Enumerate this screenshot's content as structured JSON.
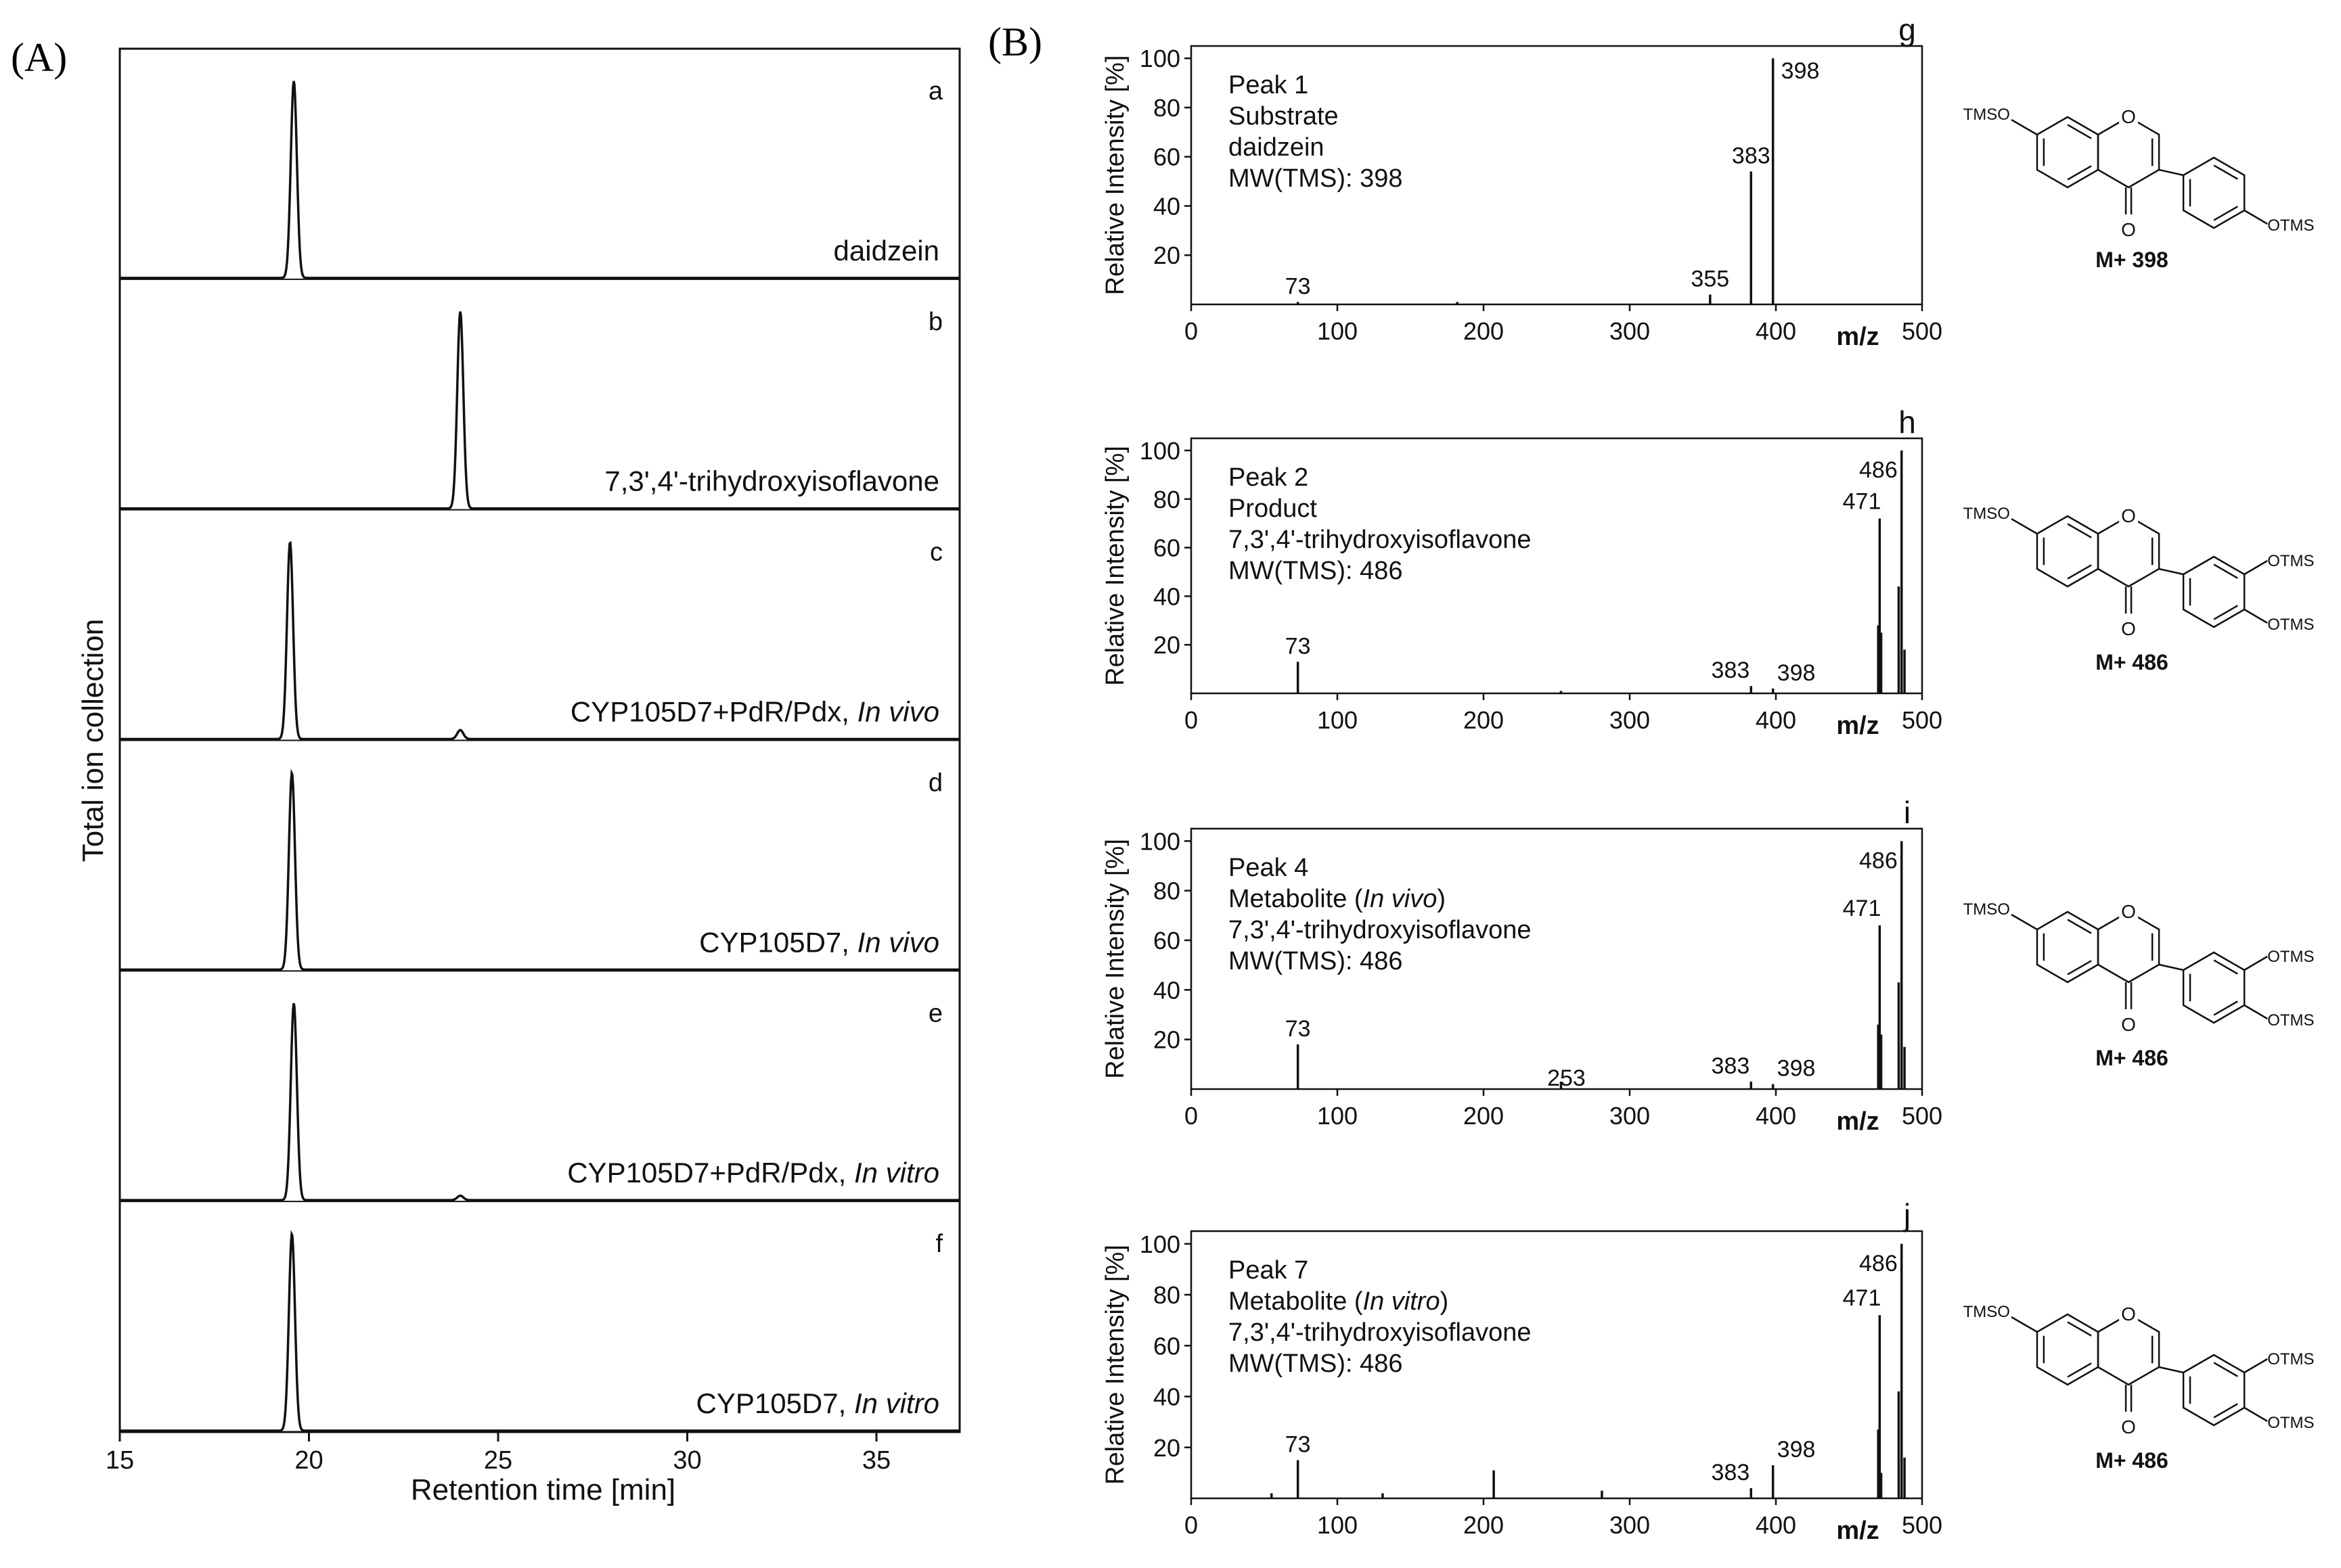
{
  "panel_labels": {
    "A": "(A)",
    "B": "(B)"
  },
  "colors": {
    "ink": "#111111",
    "background": "#ffffff"
  },
  "chart_data": [
    {
      "type": "line",
      "panel": "A",
      "xlabel": "Retention time [min]",
      "ylabel": "Total ion collection",
      "xlim": [
        15,
        37.2
      ],
      "xticks": [
        15,
        20,
        25,
        30,
        35
      ],
      "grid": false,
      "traces": [
        {
          "letter": "a",
          "label_parts": [
            {
              "text": "daidzein",
              "italic": false
            }
          ],
          "peaks": [
            {
              "x": 19.6,
              "h": 0.88
            }
          ]
        },
        {
          "letter": "b",
          "label_parts": [
            {
              "text": "7,3',4'-trihydroxyisoflavone",
              "italic": false
            }
          ],
          "peaks": [
            {
              "x": 24.0,
              "h": 0.88
            }
          ]
        },
        {
          "letter": "c",
          "label_parts": [
            {
              "text": "CYP105D7+PdR/Pdx, ",
              "italic": false
            },
            {
              "text": "In vivo",
              "italic": true
            }
          ],
          "peaks": [
            {
              "x": 19.5,
              "h": 0.88
            },
            {
              "x": 24.0,
              "h": 0.04
            }
          ]
        },
        {
          "letter": "d",
          "label_parts": [
            {
              "text": "CYP105D7, ",
              "italic": false
            },
            {
              "text": "In vivo",
              "italic": true
            }
          ],
          "peaks": [
            {
              "x": 19.55,
              "h": 0.88
            }
          ]
        },
        {
          "letter": "e",
          "label_parts": [
            {
              "text": "CYP105D7+PdR/Pdx, ",
              "italic": false
            },
            {
              "text": "In vitro",
              "italic": true
            }
          ],
          "peaks": [
            {
              "x": 19.6,
              "h": 0.88
            },
            {
              "x": 24.0,
              "h": 0.02
            }
          ]
        },
        {
          "letter": "f",
          "label_parts": [
            {
              "text": "CYP105D7, ",
              "italic": false
            },
            {
              "text": "In vitro",
              "italic": true
            }
          ],
          "peaks": [
            {
              "x": 19.55,
              "h": 0.88
            }
          ]
        }
      ]
    },
    {
      "type": "bar",
      "panel": "B",
      "letter": "g",
      "xlabel": "m/z",
      "ylabel": "Relative Intensity [%]",
      "xlim": [
        0,
        500
      ],
      "ylim": [
        0,
        105
      ],
      "xticks": [
        0,
        100,
        200,
        300,
        400,
        500
      ],
      "yticks": [
        20,
        40,
        60,
        80,
        100
      ],
      "info_lines": [
        [
          {
            "text": "Peak 1",
            "italic": false
          }
        ],
        [
          {
            "text": "Substrate",
            "italic": false
          }
        ],
        [
          {
            "text": "daidzein",
            "italic": false
          }
        ],
        [
          {
            "text": "MW(TMS): 398",
            "italic": false
          }
        ]
      ],
      "peaks": [
        {
          "mz": 73,
          "intensity": 1,
          "label": "73"
        },
        {
          "mz": 182,
          "intensity": 1
        },
        {
          "mz": 355,
          "intensity": 4,
          "label": "355"
        },
        {
          "mz": 383,
          "intensity": 54,
          "label": "383"
        },
        {
          "mz": 398,
          "intensity": 100,
          "label": "398"
        }
      ],
      "molecule": {
        "r7": "TMSO",
        "r3p": "",
        "r4p": "OTMS",
        "caption": "M+ 398"
      }
    },
    {
      "type": "bar",
      "panel": "B",
      "letter": "h",
      "xlabel": "m/z",
      "ylabel": "Relative Intensity [%]",
      "xlim": [
        0,
        500
      ],
      "ylim": [
        0,
        105
      ],
      "xticks": [
        0,
        100,
        200,
        300,
        400,
        500
      ],
      "yticks": [
        20,
        40,
        60,
        80,
        100
      ],
      "info_lines": [
        [
          {
            "text": "Peak 2",
            "italic": false
          }
        ],
        [
          {
            "text": "Product",
            "italic": false
          }
        ],
        [
          {
            "text": "7,3',4'-trihydroxyisoflavone",
            "italic": false
          }
        ],
        [
          {
            "text": "MW(TMS): 486",
            "italic": false
          }
        ]
      ],
      "peaks": [
        {
          "mz": 73,
          "intensity": 13,
          "label": "73"
        },
        {
          "mz": 253,
          "intensity": 1
        },
        {
          "mz": 383,
          "intensity": 3,
          "label": "383"
        },
        {
          "mz": 398,
          "intensity": 2,
          "label": "398"
        },
        {
          "mz": 470,
          "intensity": 28
        },
        {
          "mz": 471,
          "intensity": 72,
          "label": "471"
        },
        {
          "mz": 472,
          "intensity": 25
        },
        {
          "mz": 484,
          "intensity": 44
        },
        {
          "mz": 486,
          "intensity": 100,
          "label": "486"
        },
        {
          "mz": 488,
          "intensity": 18
        }
      ],
      "molecule": {
        "r7": "TMSO",
        "r3p": "OTMS",
        "r4p": "OTMS",
        "caption": "M+ 486"
      }
    },
    {
      "type": "bar",
      "panel": "B",
      "letter": "i",
      "xlabel": "m/z",
      "ylabel": "Relative Intensity [%]",
      "xlim": [
        0,
        500
      ],
      "ylim": [
        0,
        105
      ],
      "xticks": [
        0,
        100,
        200,
        300,
        400,
        500
      ],
      "yticks": [
        20,
        40,
        60,
        80,
        100
      ],
      "info_lines": [
        [
          {
            "text": "Peak 4",
            "italic": false
          }
        ],
        [
          {
            "text": "Metabolite (",
            "italic": false
          },
          {
            "text": "In vivo",
            "italic": true
          },
          {
            "text": ")",
            "italic": false
          }
        ],
        [
          {
            "text": "7,3',4'-trihydroxyisoflavone",
            "italic": false
          }
        ],
        [
          {
            "text": "MW(TMS): 486",
            "italic": false
          }
        ]
      ],
      "peaks": [
        {
          "mz": 73,
          "intensity": 18,
          "label": "73"
        },
        {
          "mz": 253,
          "intensity": 3,
          "label": "253"
        },
        {
          "mz": 383,
          "intensity": 3,
          "label": "383"
        },
        {
          "mz": 398,
          "intensity": 2,
          "label": "398"
        },
        {
          "mz": 470,
          "intensity": 26
        },
        {
          "mz": 471,
          "intensity": 66,
          "label": "471"
        },
        {
          "mz": 472,
          "intensity": 22
        },
        {
          "mz": 484,
          "intensity": 43
        },
        {
          "mz": 486,
          "intensity": 100,
          "label": "486"
        },
        {
          "mz": 488,
          "intensity": 17
        }
      ],
      "molecule": {
        "r7": "TMSO",
        "r3p": "OTMS",
        "r4p": "OTMS",
        "caption": "M+ 486"
      }
    },
    {
      "type": "bar",
      "panel": "B",
      "letter": "j",
      "xlabel": "m/z",
      "ylabel": "Relative Intensity [%]",
      "xlim": [
        0,
        500
      ],
      "ylim": [
        0,
        105
      ],
      "xticks": [
        0,
        100,
        200,
        300,
        400,
        500
      ],
      "yticks": [
        20,
        40,
        60,
        80,
        100
      ],
      "info_lines": [
        [
          {
            "text": "Peak 7",
            "italic": false
          }
        ],
        [
          {
            "text": "Metabolite (",
            "italic": false
          },
          {
            "text": "In vitro",
            "italic": true
          },
          {
            "text": ")",
            "italic": false
          }
        ],
        [
          {
            "text": "7,3',4'-trihydroxyisoflavone",
            "italic": false
          }
        ],
        [
          {
            "text": "MW(TMS): 486",
            "italic": false
          }
        ]
      ],
      "peaks": [
        {
          "mz": 55,
          "intensity": 2
        },
        {
          "mz": 73,
          "intensity": 15,
          "label": "73"
        },
        {
          "mz": 131,
          "intensity": 2
        },
        {
          "mz": 207,
          "intensity": 11
        },
        {
          "mz": 281,
          "intensity": 3
        },
        {
          "mz": 383,
          "intensity": 4,
          "label": "383"
        },
        {
          "mz": 398,
          "intensity": 13,
          "label": "398"
        },
        {
          "mz": 470,
          "intensity": 27
        },
        {
          "mz": 471,
          "intensity": 72,
          "label": "471"
        },
        {
          "mz": 472,
          "intensity": 10
        },
        {
          "mz": 484,
          "intensity": 42
        },
        {
          "mz": 486,
          "intensity": 100,
          "label": "486"
        },
        {
          "mz": 488,
          "intensity": 16
        }
      ],
      "molecule": {
        "r7": "TMSO",
        "r3p": "OTMS",
        "r4p": "OTMS",
        "caption": "M+ 486"
      }
    }
  ]
}
